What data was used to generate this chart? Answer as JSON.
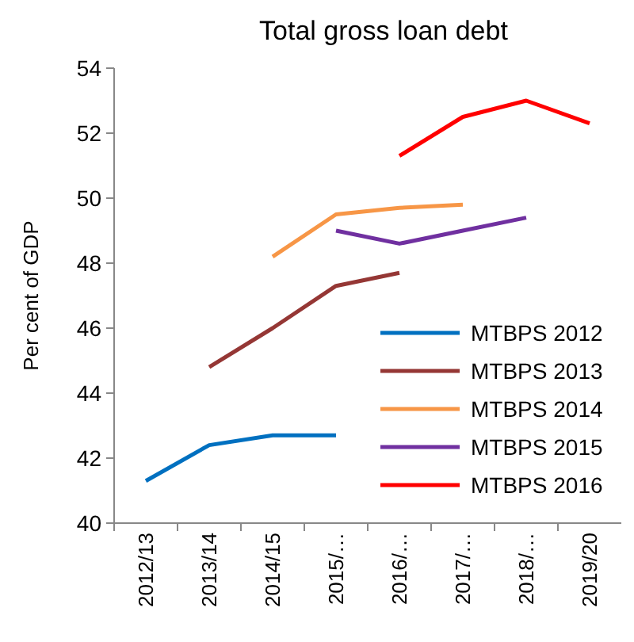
{
  "chart_data": {
    "type": "line",
    "title": "Total gross loan debt",
    "ylabel": "Per cent of GDP",
    "categories": [
      "2012/13",
      "2013/14",
      "2014/15",
      "2015/…",
      "2016/…",
      "2017/…",
      "2018/…",
      "2019/20"
    ],
    "series": [
      {
        "name": "MTBPS 2012",
        "color": "#0070c0",
        "values": [
          41.3,
          42.4,
          42.7,
          42.7,
          null,
          null,
          null,
          null
        ]
      },
      {
        "name": "MTBPS 2013",
        "color": "#953735",
        "values": [
          null,
          44.8,
          46.0,
          47.3,
          47.7,
          null,
          null,
          null
        ]
      },
      {
        "name": "MTBPS 2014",
        "color": "#f79646",
        "values": [
          null,
          null,
          48.2,
          49.5,
          49.7,
          49.8,
          null,
          null
        ]
      },
      {
        "name": "MTBPS 2015",
        "color": "#7030a0",
        "values": [
          null,
          null,
          null,
          49.0,
          48.6,
          49.0,
          49.4,
          null
        ]
      },
      {
        "name": "MTBPS 2016",
        "color": "#ff0000",
        "values": [
          null,
          null,
          null,
          null,
          51.3,
          52.5,
          53.0,
          52.3
        ]
      }
    ],
    "ylim": [
      40,
      54
    ],
    "yticks": [
      40,
      42,
      44,
      46,
      48,
      50,
      52,
      54
    ],
    "grid": false,
    "legend": "bottom right",
    "marker": "none",
    "line_style": "solid"
  }
}
